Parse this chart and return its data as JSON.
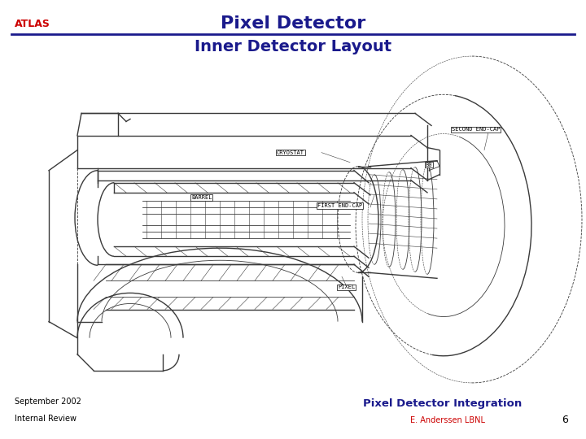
{
  "title_line1": "Pixel Detector",
  "title_line2": "Inner Detector Layout",
  "atlas_text": "ATLAS",
  "atlas_color": "#cc0000",
  "title_color": "#1a1a8c",
  "line_color": "#1a1a8c",
  "footer_left_line1": "September 2002",
  "footer_left_line2": "Internal Review",
  "footer_right_bold": "Pixel Detector Integration",
  "footer_right_bold_color": "#1a1a8c",
  "footer_right_sub": "E. Anderssen LBNL",
  "footer_right_sub_color": "#cc0000",
  "page_number": "6",
  "bg_color": "#ffffff"
}
